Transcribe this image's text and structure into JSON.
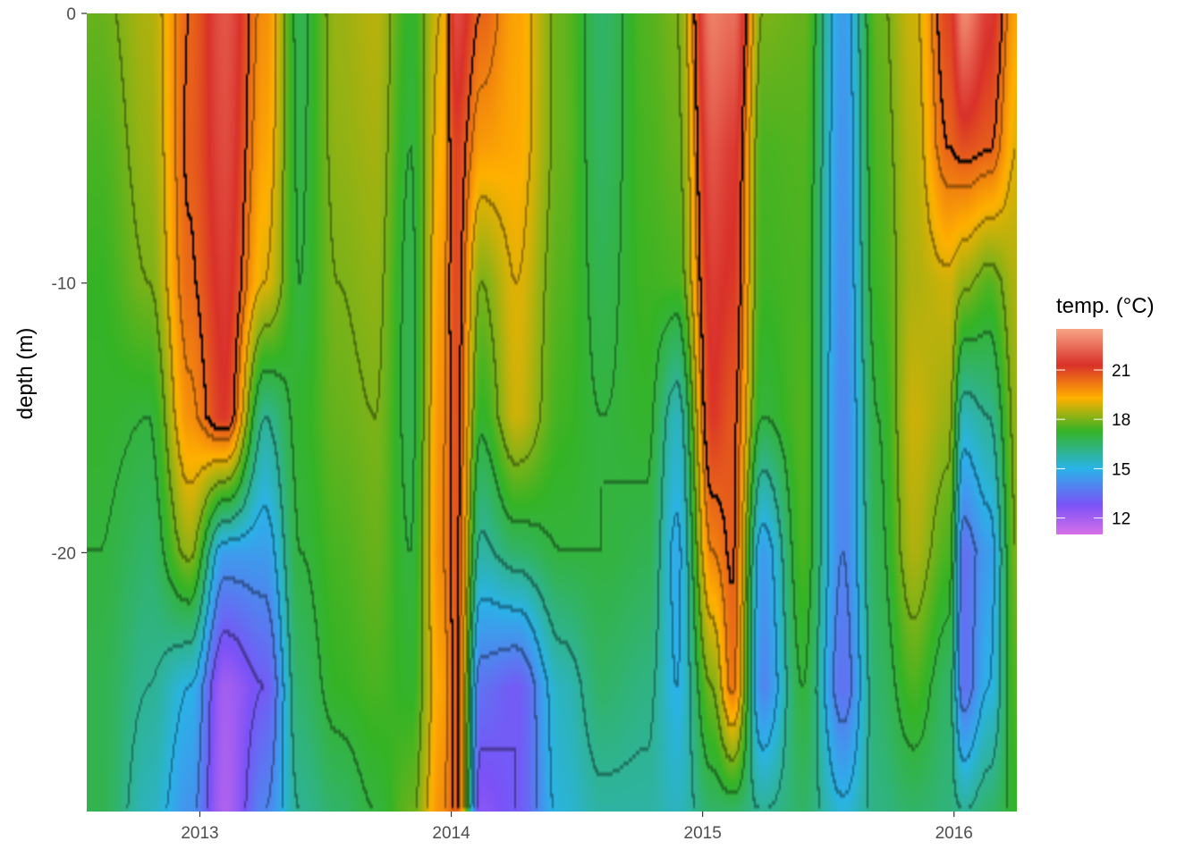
{
  "chart_data": {
    "type": "heatmap",
    "title": "",
    "xlabel": "",
    "ylabel": "depth (m)",
    "x_ticks": [
      "2013",
      "2014",
      "2015",
      "2016"
    ],
    "x_tick_values": [
      2013.0,
      2014.0,
      2015.0,
      2016.0
    ],
    "xlim": [
      2012.55,
      2016.25
    ],
    "y_ticks": [
      "0",
      "-10",
      "-20"
    ],
    "y_tick_values": [
      0,
      -10,
      -20
    ],
    "ylim": [
      -29.6,
      0
    ],
    "grid": false,
    "legend": {
      "title": "temp. (°C)",
      "placement": "right",
      "labels": [
        "21",
        "18",
        "15",
        "12"
      ],
      "values": [
        21,
        18,
        15,
        12
      ],
      "range": [
        11,
        23.5
      ],
      "colors": [
        "#d66fe7",
        "#7b52f7",
        "#2ab3e8",
        "#35b325",
        "#ffb000",
        "#d9312a",
        "#f7a585"
      ],
      "color_stops": [
        11,
        12.8,
        15,
        17.3,
        19.3,
        21.3,
        23.5
      ]
    },
    "contour_levels": [
      13,
      14,
      15,
      16,
      17,
      18,
      19,
      20
    ],
    "highlight_contour_level": 20.5,
    "depth_grid_m": [
      0,
      -5,
      -10,
      -15,
      -20,
      -25,
      -29.6
    ],
    "series": [
      {
        "x": 2012.6,
        "temps": [
          17.8,
          17.5,
          17.3,
          17.2,
          17.0,
          16.8,
          16.8
        ]
      },
      {
        "x": 2012.8,
        "temps": [
          18.5,
          18.3,
          18.0,
          17.0,
          16.5,
          16.0,
          15.5
        ]
      },
      {
        "x": 2012.96,
        "temps": [
          20.5,
          20.6,
          20.4,
          19.8,
          18.2,
          15.0,
          14.3
        ]
      },
      {
        "x": 2013.1,
        "temps": [
          22.0,
          21.8,
          21.5,
          21.2,
          14.5,
          12.0,
          11.8
        ]
      },
      {
        "x": 2013.26,
        "temps": [
          19.8,
          19.5,
          19.0,
          16.0,
          14.5,
          13.0,
          14.0
        ]
      },
      {
        "x": 2013.4,
        "temps": [
          16.8,
          16.9,
          17.0,
          17.2,
          17.0,
          16.5,
          16.0
        ]
      },
      {
        "x": 2013.55,
        "temps": [
          18.3,
          18.2,
          18.0,
          17.8,
          17.5,
          17.3,
          16.5
        ]
      },
      {
        "x": 2013.7,
        "temps": [
          18.6,
          18.4,
          18.2,
          18.0,
          17.8,
          17.5,
          17.0
        ]
      },
      {
        "x": 2013.84,
        "temps": [
          17.2,
          17.0,
          16.8,
          16.8,
          17.0,
          17.2,
          17.8
        ]
      },
      {
        "x": 2013.96,
        "temps": [
          19.0,
          19.3,
          19.6,
          19.8,
          19.9,
          19.5,
          19.8
        ]
      },
      {
        "x": 2014.02,
        "temps": [
          21.8,
          21.0,
          20.9,
          20.8,
          20.7,
          20.6,
          20.6
        ]
      },
      {
        "x": 2014.12,
        "temps": [
          20.5,
          19.6,
          18.0,
          17.2,
          15.8,
          13.5,
          12.5
        ]
      },
      {
        "x": 2014.26,
        "temps": [
          19.5,
          19.4,
          19.0,
          18.8,
          16.5,
          13.0,
          13.0
        ]
      },
      {
        "x": 2014.44,
        "temps": [
          17.8,
          17.8,
          17.6,
          17.4,
          17.0,
          15.5,
          15.2
        ]
      },
      {
        "x": 2014.6,
        "temps": [
          16.5,
          16.6,
          16.8,
          17.0,
          17.0,
          16.5,
          15.8
        ]
      },
      {
        "x": 2014.78,
        "temps": [
          17.6,
          17.5,
          17.4,
          17.2,
          16.8,
          16.2,
          15.8
        ]
      },
      {
        "x": 2014.9,
        "temps": [
          18.0,
          17.8,
          17.5,
          15.5,
          14.8,
          15.0,
          15.5
        ]
      },
      {
        "x": 2015.04,
        "temps": [
          22.8,
          22.0,
          21.5,
          21.2,
          20.0,
          18.0,
          16.5
        ]
      },
      {
        "x": 2015.12,
        "temps": [
          22.5,
          21.5,
          21.2,
          20.7,
          20.6,
          20.2,
          16.5
        ]
      },
      {
        "x": 2015.24,
        "temps": [
          18.0,
          17.5,
          17.4,
          17.0,
          14.5,
          14.0,
          16.0
        ]
      },
      {
        "x": 2015.4,
        "temps": [
          17.8,
          17.6,
          17.5,
          17.6,
          17.5,
          17.0,
          16.5
        ]
      },
      {
        "x": 2015.56,
        "temps": [
          14.5,
          14.3,
          14.2,
          14.0,
          14.0,
          13.5,
          15.2
        ]
      },
      {
        "x": 2015.7,
        "temps": [
          17.8,
          17.6,
          17.4,
          17.0,
          16.8,
          16.5,
          16.2
        ]
      },
      {
        "x": 2015.84,
        "temps": [
          18.8,
          18.6,
          18.5,
          18.8,
          18.5,
          17.5,
          16.5
        ]
      },
      {
        "x": 2015.98,
        "temps": [
          21.0,
          20.5,
          18.8,
          18.3,
          17.5,
          16.5,
          16.3
        ]
      },
      {
        "x": 2016.04,
        "temps": [
          23.0,
          20.8,
          18.2,
          15.5,
          13.5,
          13.5,
          16.0
        ]
      },
      {
        "x": 2016.14,
        "temps": [
          21.5,
          20.6,
          17.6,
          16.0,
          14.5,
          15.0,
          16.5
        ]
      },
      {
        "x": 2016.25,
        "temps": [
          19.5,
          19.0,
          18.5,
          18.2,
          18.0,
          17.6,
          17.2
        ]
      }
    ]
  }
}
